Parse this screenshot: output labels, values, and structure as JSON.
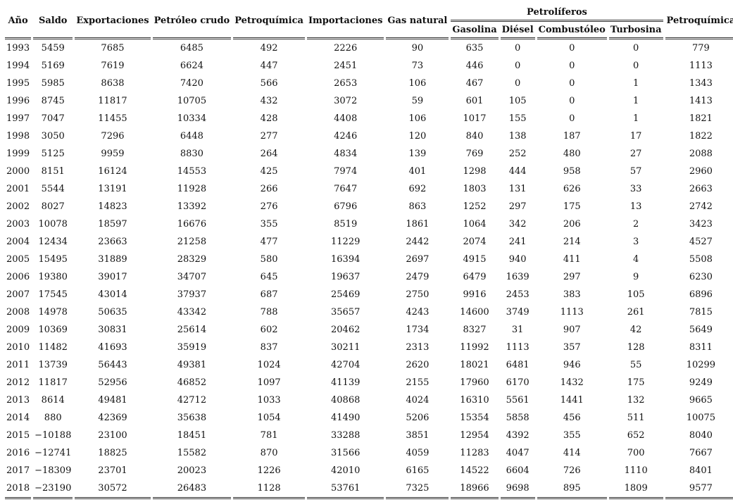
{
  "table": {
    "header": {
      "top": [
        "Año",
        "Saldo",
        "Exportaciones",
        "Petróleo crudo",
        "Petroquímica",
        "Importaciones",
        "Gas natural",
        "Petrolíferos",
        "Petroquímica"
      ],
      "sub": [
        "Gasolina",
        "Diésel",
        "Combustóleo",
        "Turbosina"
      ]
    },
    "rows": [
      [
        1993,
        5459,
        7685,
        6485,
        492,
        2226,
        90,
        635,
        0,
        0,
        0,
        779
      ],
      [
        1994,
        5169,
        7619,
        6624,
        447,
        2451,
        73,
        446,
        0,
        0,
        0,
        1113
      ],
      [
        1995,
        5985,
        8638,
        7420,
        566,
        2653,
        106,
        467,
        0,
        0,
        1,
        1343
      ],
      [
        1996,
        8745,
        11817,
        10705,
        432,
        3072,
        59,
        601,
        105,
        0,
        1,
        1413
      ],
      [
        1997,
        7047,
        11455,
        10334,
        428,
        4408,
        106,
        1017,
        155,
        0,
        1,
        1821
      ],
      [
        1998,
        3050,
        7296,
        6448,
        277,
        4246,
        120,
        840,
        138,
        187,
        17,
        1822
      ],
      [
        1999,
        5125,
        9959,
        8830,
        264,
        4834,
        139,
        769,
        252,
        480,
        27,
        2088
      ],
      [
        2000,
        8151,
        16124,
        14553,
        425,
        7974,
        401,
        1298,
        444,
        958,
        57,
        2960
      ],
      [
        2001,
        5544,
        13191,
        11928,
        266,
        7647,
        692,
        1803,
        131,
        626,
        33,
        2663
      ],
      [
        2002,
        8027,
        14823,
        13392,
        276,
        6796,
        863,
        1252,
        297,
        175,
        13,
        2742
      ],
      [
        2003,
        10078,
        18597,
        16676,
        355,
        8519,
        1861,
        1064,
        342,
        206,
        2,
        3423
      ],
      [
        2004,
        12434,
        23663,
        21258,
        477,
        11229,
        2442,
        2074,
        241,
        214,
        3,
        4527
      ],
      [
        2005,
        15495,
        31889,
        28329,
        580,
        16394,
        2697,
        4915,
        940,
        411,
        4,
        5508
      ],
      [
        2006,
        19380,
        39017,
        34707,
        645,
        19637,
        2479,
        6479,
        1639,
        297,
        9,
        6230
      ],
      [
        2007,
        17545,
        43014,
        37937,
        687,
        25469,
        2750,
        9916,
        2453,
        383,
        105,
        6896
      ],
      [
        2008,
        14978,
        50635,
        43342,
        788,
        35657,
        4243,
        14600,
        3749,
        1113,
        261,
        7815
      ],
      [
        2009,
        10369,
        30831,
        25614,
        602,
        20462,
        1734,
        8327,
        31,
        907,
        42,
        5649
      ],
      [
        2010,
        11482,
        41693,
        35919,
        837,
        30211,
        2313,
        11992,
        1113,
        357,
        128,
        8311
      ],
      [
        2011,
        13739,
        56443,
        49381,
        1024,
        42704,
        2620,
        18021,
        6481,
        946,
        55,
        10299
      ],
      [
        2012,
        11817,
        52956,
        46852,
        1097,
        41139,
        2155,
        17960,
        6170,
        1432,
        175,
        9249
      ],
      [
        2013,
        8614,
        49481,
        42712,
        1033,
        40868,
        4024,
        16310,
        5561,
        1441,
        132,
        9665
      ],
      [
        2014,
        880,
        42369,
        35638,
        1054,
        41490,
        5206,
        15354,
        5858,
        456,
        511,
        10075
      ],
      [
        2015,
        "−10188",
        23100,
        18451,
        781,
        33288,
        3851,
        12954,
        4392,
        355,
        652,
        8040
      ],
      [
        2016,
        "−12741",
        18825,
        15582,
        870,
        31566,
        4059,
        11283,
        4047,
        414,
        700,
        7667
      ],
      [
        2017,
        "−18309",
        23701,
        20023,
        1226,
        42010,
        6165,
        14522,
        6604,
        726,
        1110,
        8401
      ],
      [
        2018,
        "−23190",
        30572,
        26483,
        1128,
        53761,
        7325,
        18966,
        9698,
        895,
        1809,
        9577
      ]
    ]
  }
}
